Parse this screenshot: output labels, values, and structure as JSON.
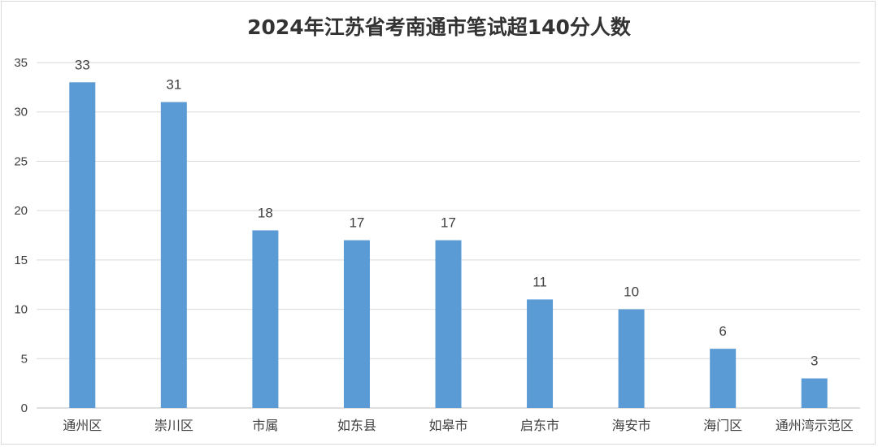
{
  "chart_data": {
    "type": "bar",
    "title": "2024年江苏省考南通市笔试超140分人数",
    "categories": [
      "通州区",
      "崇川区",
      "市属",
      "如东县",
      "如皋市",
      "启东市",
      "海安市",
      "海门区",
      "通州湾示范区"
    ],
    "values": [
      33,
      31,
      18,
      17,
      17,
      11,
      10,
      6,
      3
    ],
    "ylim": [
      0,
      35
    ],
    "yticks": [
      0,
      5,
      10,
      15,
      20,
      25,
      30,
      35
    ],
    "grid": true,
    "data_labels": true,
    "legend": "none",
    "xlabel": "",
    "ylabel": "",
    "bar_color": "#5b9bd5",
    "grid_color": "#d9d9d9"
  }
}
